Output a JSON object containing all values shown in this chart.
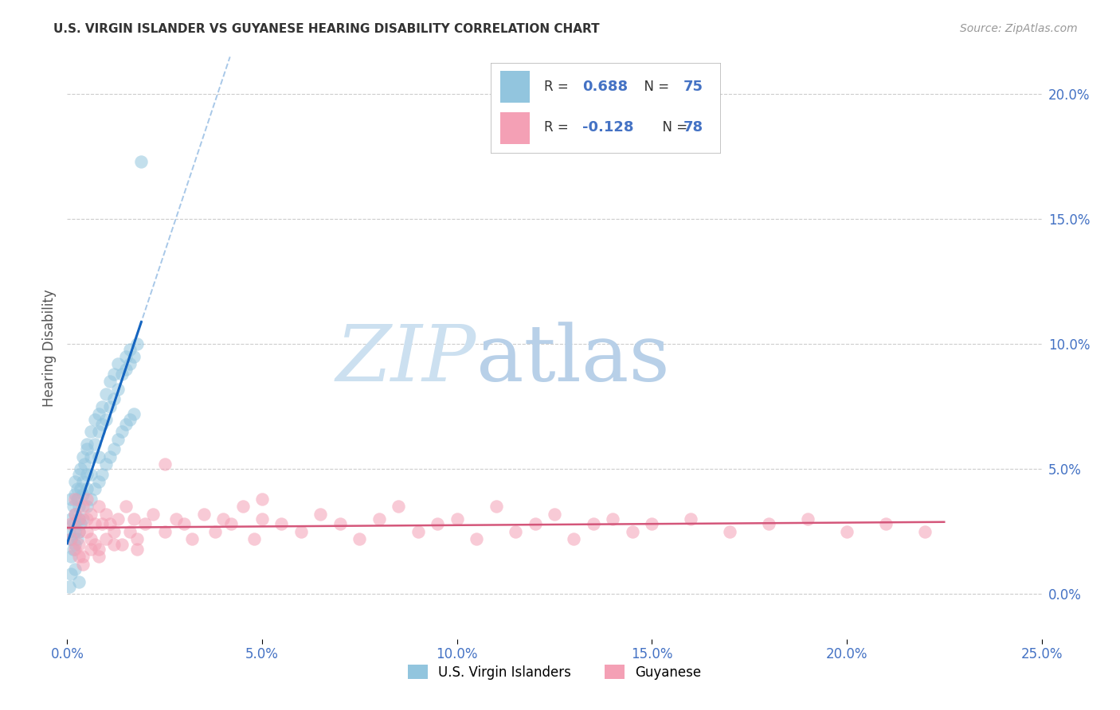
{
  "title": "U.S. VIRGIN ISLANDER VS GUYANESE HEARING DISABILITY CORRELATION CHART",
  "source": "Source: ZipAtlas.com",
  "ylabel": "Hearing Disability",
  "R1": 0.688,
  "N1": 75,
  "R2": -0.128,
  "N2": 78,
  "color_blue": "#92c5de",
  "color_blue_line": "#1565c0",
  "color_blue_dash": "#a8c8e8",
  "color_pink": "#f4a0b5",
  "color_pink_line": "#d4567a",
  "color_value": "#4472c4",
  "color_title": "#333333",
  "color_source": "#999999",
  "color_ylabel": "#555555",
  "background": "#ffffff",
  "grid_color": "#cccccc",
  "watermark_zip": "#cce0f0",
  "watermark_atlas": "#b8d0e8",
  "xmin": 0.0,
  "xmax": 0.25,
  "ymin": -0.018,
  "ymax": 0.215,
  "legend_label1": "U.S. Virgin Islanders",
  "legend_label2": "Guyanese",
  "vi_x": [
    0.0005,
    0.001,
    0.001,
    0.001,
    0.0015,
    0.0015,
    0.002,
    0.002,
    0.002,
    0.002,
    0.0025,
    0.0025,
    0.003,
    0.003,
    0.003,
    0.0035,
    0.0035,
    0.004,
    0.004,
    0.004,
    0.0045,
    0.005,
    0.005,
    0.005,
    0.005,
    0.006,
    0.006,
    0.006,
    0.007,
    0.007,
    0.008,
    0.008,
    0.008,
    0.009,
    0.009,
    0.01,
    0.01,
    0.011,
    0.011,
    0.012,
    0.012,
    0.013,
    0.013,
    0.014,
    0.015,
    0.015,
    0.016,
    0.016,
    0.017,
    0.018,
    0.001,
    0.0015,
    0.002,
    0.0025,
    0.003,
    0.0035,
    0.004,
    0.005,
    0.006,
    0.007,
    0.008,
    0.009,
    0.01,
    0.011,
    0.012,
    0.013,
    0.014,
    0.015,
    0.016,
    0.017,
    0.001,
    0.002,
    0.003,
    0.019,
    0.0005
  ],
  "vi_y": [
    0.025,
    0.03,
    0.022,
    0.038,
    0.028,
    0.035,
    0.032,
    0.04,
    0.025,
    0.045,
    0.038,
    0.042,
    0.035,
    0.048,
    0.03,
    0.042,
    0.05,
    0.04,
    0.055,
    0.045,
    0.052,
    0.048,
    0.058,
    0.042,
    0.06,
    0.055,
    0.065,
    0.048,
    0.06,
    0.07,
    0.065,
    0.072,
    0.055,
    0.068,
    0.075,
    0.07,
    0.08,
    0.075,
    0.085,
    0.078,
    0.088,
    0.082,
    0.092,
    0.088,
    0.09,
    0.095,
    0.092,
    0.098,
    0.095,
    0.1,
    0.015,
    0.018,
    0.02,
    0.022,
    0.025,
    0.028,
    0.03,
    0.035,
    0.038,
    0.042,
    0.045,
    0.048,
    0.052,
    0.055,
    0.058,
    0.062,
    0.065,
    0.068,
    0.07,
    0.072,
    0.008,
    0.01,
    0.005,
    0.173,
    0.003
  ],
  "gy_x": [
    0.001,
    0.001,
    0.002,
    0.002,
    0.002,
    0.003,
    0.003,
    0.003,
    0.004,
    0.004,
    0.005,
    0.005,
    0.005,
    0.006,
    0.006,
    0.007,
    0.007,
    0.008,
    0.008,
    0.009,
    0.01,
    0.01,
    0.011,
    0.012,
    0.013,
    0.014,
    0.015,
    0.016,
    0.017,
    0.018,
    0.02,
    0.022,
    0.025,
    0.028,
    0.03,
    0.032,
    0.035,
    0.038,
    0.04,
    0.042,
    0.045,
    0.048,
    0.05,
    0.055,
    0.06,
    0.065,
    0.07,
    0.075,
    0.08,
    0.085,
    0.09,
    0.095,
    0.1,
    0.105,
    0.11,
    0.115,
    0.12,
    0.125,
    0.13,
    0.135,
    0.14,
    0.145,
    0.15,
    0.16,
    0.17,
    0.18,
    0.19,
    0.2,
    0.21,
    0.22,
    0.003,
    0.004,
    0.006,
    0.008,
    0.012,
    0.018,
    0.025,
    0.05
  ],
  "gy_y": [
    0.028,
    0.022,
    0.032,
    0.018,
    0.038,
    0.025,
    0.03,
    0.02,
    0.035,
    0.015,
    0.03,
    0.025,
    0.038,
    0.022,
    0.032,
    0.028,
    0.02,
    0.035,
    0.018,
    0.028,
    0.032,
    0.022,
    0.028,
    0.025,
    0.03,
    0.02,
    0.035,
    0.025,
    0.03,
    0.022,
    0.028,
    0.032,
    0.025,
    0.03,
    0.028,
    0.022,
    0.032,
    0.025,
    0.03,
    0.028,
    0.035,
    0.022,
    0.03,
    0.028,
    0.025,
    0.032,
    0.028,
    0.022,
    0.03,
    0.035,
    0.025,
    0.028,
    0.03,
    0.022,
    0.035,
    0.025,
    0.028,
    0.032,
    0.022,
    0.028,
    0.03,
    0.025,
    0.028,
    0.03,
    0.025,
    0.028,
    0.03,
    0.025,
    0.028,
    0.025,
    0.015,
    0.012,
    0.018,
    0.015,
    0.02,
    0.018,
    0.052,
    0.038
  ]
}
